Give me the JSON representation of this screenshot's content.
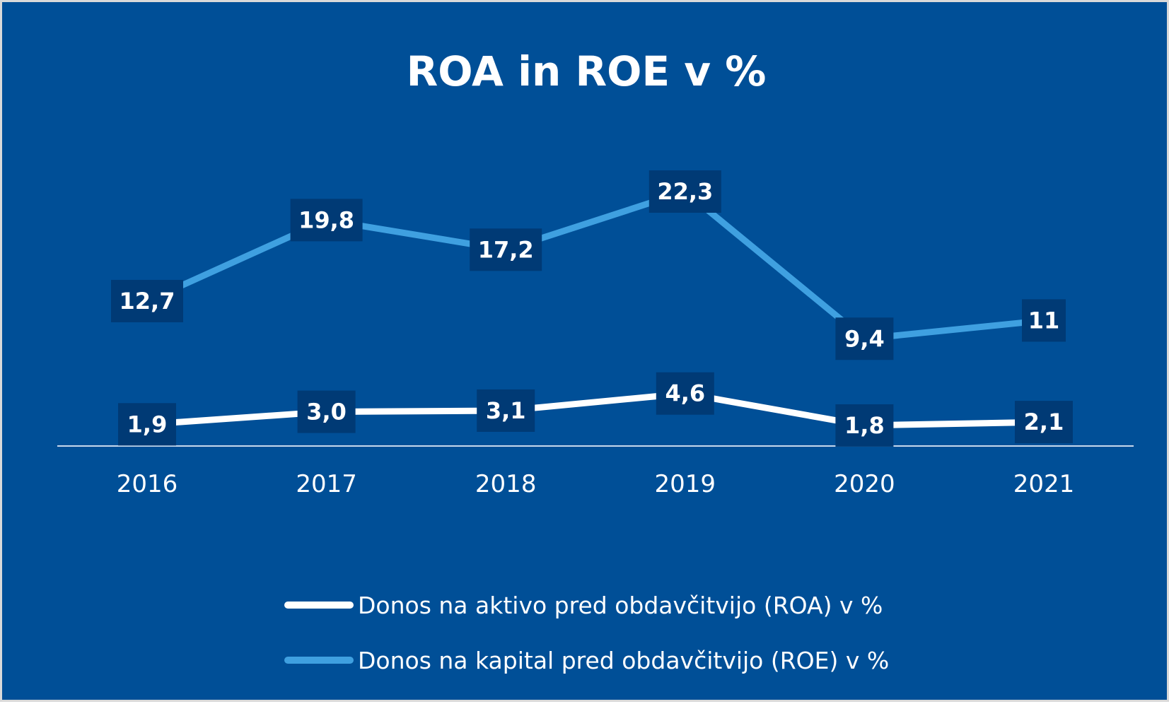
{
  "chart_data": {
    "type": "line",
    "title": "ROA in ROE v %",
    "categories": [
      "2016",
      "2017",
      "2018",
      "2019",
      "2020",
      "2021"
    ],
    "series": [
      {
        "name": "Donos na aktivo pred obdavčitvijo (ROA) v %",
        "values": [
          1.9,
          3.0,
          3.1,
          4.6,
          1.8,
          2.1
        ],
        "labels": [
          "1,9",
          "3,0",
          "3,1",
          "4,6",
          "1,8",
          "2,1"
        ],
        "color": "#ffffff"
      },
      {
        "name": "Donos na kapital pred obdavčitvijo (ROE) v %",
        "values": [
          12.7,
          19.8,
          17.2,
          22.3,
          9.4,
          11
        ],
        "labels": [
          "12,7",
          "19,8",
          "17,2",
          "22,3",
          "9,4",
          "11"
        ],
        "color": "#3fa0e0"
      }
    ],
    "ylim": [
      0,
      30
    ],
    "grid": false,
    "legend_position": "bottom",
    "background_color": "#004f97",
    "label_box_color": "#003a75"
  }
}
